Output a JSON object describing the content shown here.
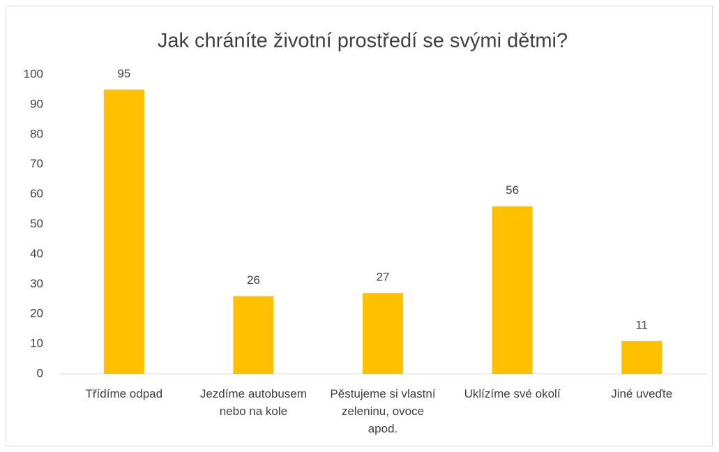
{
  "chart_data": {
    "type": "bar",
    "title": "Jak chráníte životní prostředí se svými dětmi?",
    "categories": [
      "Třídíme odpad",
      "Jezdíme autobusem nebo na kole",
      "Pěstujeme si vlastní zeleninu, ovoce apod.",
      "Uklízíme své okolí",
      "Jiné uveďte"
    ],
    "values": [
      95,
      26,
      27,
      56,
      11
    ],
    "color": "#ffc000",
    "ylim": [
      0,
      100
    ],
    "yticks": [
      0,
      10,
      20,
      30,
      40,
      50,
      60,
      70,
      80,
      90,
      100
    ],
    "grid": false
  }
}
